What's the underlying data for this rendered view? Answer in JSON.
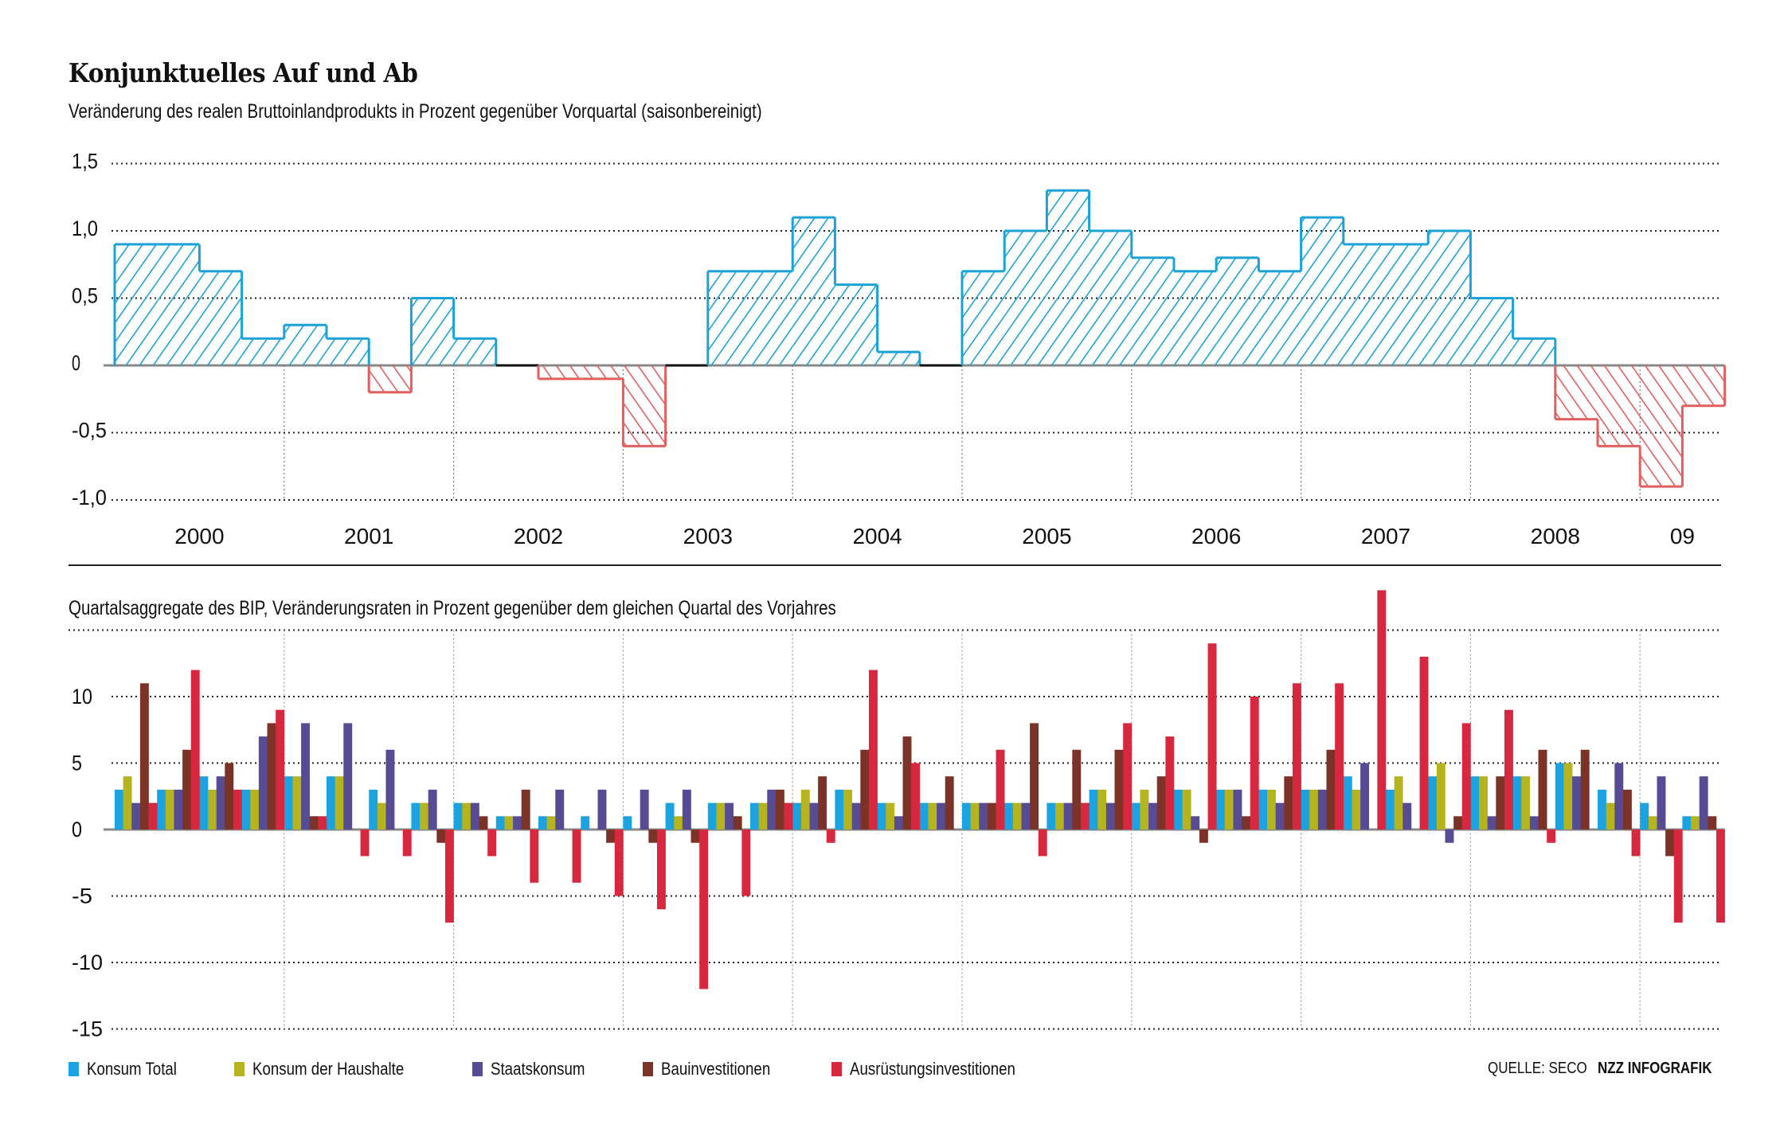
{
  "title": "Konjunktuelles Auf und Ab",
  "colors": {
    "positive": "#1ba3d8",
    "negative": "#e35e5e",
    "grid": "#333333"
  },
  "chart_data": [
    {
      "type": "bar",
      "subtype": "step-histogram",
      "title": "Konjunktuelles Auf und Ab",
      "subtitle": "Veränderung des realen Bruttoinlandprodukts in Prozent gegenüber Vorquartal (saisonbereinigt)",
      "xlabel": "",
      "ylabel": "",
      "ylim": [
        -1.0,
        1.5
      ],
      "yticks": [
        1.5,
        1.0,
        0.5,
        0,
        -0.5,
        -1.0
      ],
      "ytick_labels": [
        "1,5",
        "1,0",
        "0,5",
        "0",
        "-0,5",
        "-1,0"
      ],
      "grid": true,
      "year_labels": [
        "2000",
        "2001",
        "2002",
        "2003",
        "2004",
        "2005",
        "2006",
        "2007",
        "2008",
        "09"
      ],
      "quarters_per_year": [
        4,
        4,
        4,
        4,
        4,
        4,
        4,
        4,
        4,
        2
      ],
      "categories": [
        "2000Q1",
        "2000Q2",
        "2000Q3",
        "2000Q4",
        "2001Q1",
        "2001Q2",
        "2001Q3",
        "2001Q4",
        "2002Q1",
        "2002Q2",
        "2002Q3",
        "2002Q4",
        "2003Q1",
        "2003Q2",
        "2003Q3",
        "2003Q4",
        "2004Q1",
        "2004Q2",
        "2004Q3",
        "2004Q4",
        "2005Q1",
        "2005Q2",
        "2005Q3",
        "2005Q4",
        "2006Q1",
        "2006Q2",
        "2006Q3",
        "2006Q4",
        "2007Q1",
        "2007Q2",
        "2007Q3",
        "2007Q4",
        "2008Q1",
        "2008Q2",
        "2008Q3",
        "2008Q4",
        "2009Q1",
        "2009Q2"
      ],
      "values": [
        0.9,
        0.9,
        0.7,
        0.2,
        0.3,
        0.2,
        -0.2,
        0.5,
        0.2,
        0.0,
        -0.1,
        -0.1,
        -0.6,
        0.0,
        0.7,
        0.7,
        1.1,
        0.6,
        0.1,
        0.0,
        0.7,
        1.0,
        1.3,
        1.0,
        0.8,
        0.7,
        0.8,
        0.7,
        1.1,
        0.9,
        0.9,
        1.0,
        0.5,
        0.2,
        -0.4,
        -0.6,
        -0.9,
        -0.3
      ]
    },
    {
      "type": "bar",
      "subtype": "grouped",
      "title": "Quartalsaggregate des BIP, Veränderungsraten in Prozent gegenüber dem gleichen Quartal des Vorjahres",
      "xlabel": "",
      "ylabel": "",
      "ylim": [
        -15,
        15
      ],
      "yticks": [
        10,
        5,
        0,
        -5,
        -10,
        -15
      ],
      "ytick_labels": [
        "10",
        "5",
        "0",
        "-5",
        "-10",
        "-15"
      ],
      "grid": true,
      "legend_position": "bottom-left",
      "categories": [
        "2000Q1",
        "2000Q2",
        "2000Q3",
        "2000Q4",
        "2001Q1",
        "2001Q2",
        "2001Q3",
        "2001Q4",
        "2002Q1",
        "2002Q2",
        "2002Q3",
        "2002Q4",
        "2003Q1",
        "2003Q2",
        "2003Q3",
        "2003Q4",
        "2004Q1",
        "2004Q2",
        "2004Q3",
        "2004Q4",
        "2005Q1",
        "2005Q2",
        "2005Q3",
        "2005Q4",
        "2006Q1",
        "2006Q2",
        "2006Q3",
        "2006Q4",
        "2007Q1",
        "2007Q2",
        "2007Q3",
        "2007Q4",
        "2008Q1",
        "2008Q2",
        "2008Q3",
        "2008Q4",
        "2009Q1",
        "2009Q2"
      ],
      "series": [
        {
          "name": "Konsum Total",
          "color": "#1aa3e0",
          "values": [
            3,
            3,
            4,
            3,
            4,
            4,
            3,
            2,
            2,
            1,
            1,
            1,
            1,
            2,
            2,
            2,
            2,
            3,
            2,
            2,
            2,
            2,
            2,
            3,
            2,
            3,
            3,
            3,
            3,
            4,
            3,
            4,
            4,
            4,
            5,
            3,
            2,
            1
          ]
        },
        {
          "name": "Konsum der Haushalte",
          "color": "#b5b31e",
          "values": [
            4,
            3,
            3,
            3,
            4,
            4,
            2,
            2,
            2,
            1,
            1,
            0,
            0,
            1,
            2,
            2,
            3,
            3,
            2,
            2,
            2,
            2,
            2,
            3,
            3,
            3,
            3,
            3,
            3,
            3,
            4,
            5,
            4,
            4,
            5,
            2,
            1,
            1
          ]
        },
        {
          "name": "Staatskonsum",
          "color": "#574c94",
          "values": [
            2,
            3,
            4,
            7,
            8,
            8,
            6,
            3,
            2,
            1,
            3,
            3,
            3,
            3,
            2,
            3,
            2,
            2,
            1,
            2,
            2,
            2,
            2,
            2,
            2,
            1,
            3,
            2,
            3,
            5,
            2,
            -1,
            1,
            1,
            4,
            5,
            4,
            4
          ]
        },
        {
          "name": "Bauinvestitionen",
          "color": "#7a3326",
          "values": [
            11,
            6,
            5,
            8,
            1,
            0,
            0,
            -1,
            1,
            3,
            0,
            -1,
            -1,
            -1,
            1,
            3,
            4,
            6,
            7,
            4,
            2,
            8,
            6,
            6,
            4,
            -1,
            1,
            4,
            6,
            0,
            0,
            1,
            4,
            6,
            6,
            3,
            -2,
            1
          ]
        },
        {
          "name": "Ausrüstungsinvestitionen",
          "color": "#d8283f",
          "values": [
            2,
            12,
            3,
            9,
            1,
            -2,
            -2,
            -7,
            -2,
            -4,
            -4,
            -5,
            -6,
            -12,
            -5,
            2,
            -1,
            12,
            5,
            0,
            6,
            -2,
            2,
            8,
            7,
            14,
            10,
            11,
            11,
            18,
            13,
            8,
            9,
            -1,
            0,
            -2,
            -7,
            -7
          ]
        }
      ]
    }
  ],
  "footer": {
    "source": "QUELLE: SECO",
    "credit": "NZZ INFOGRAFIK"
  }
}
